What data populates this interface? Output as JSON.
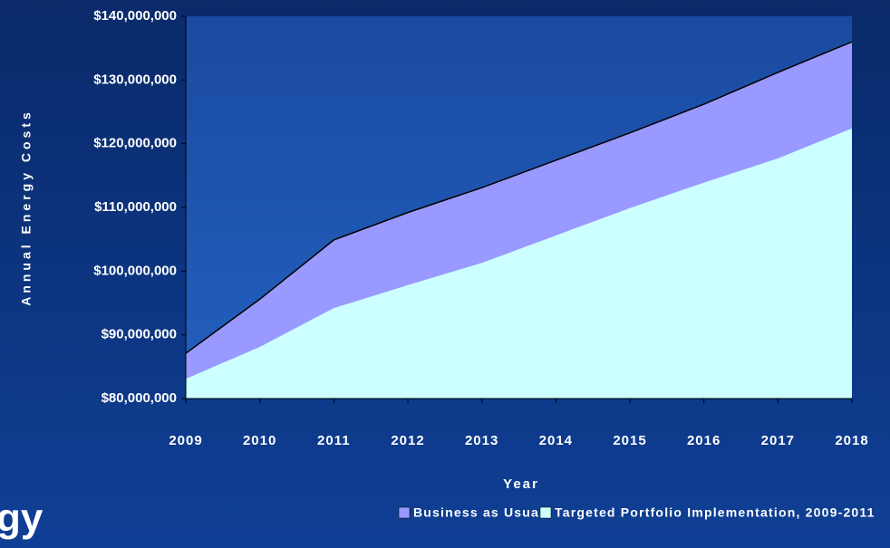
{
  "slide_text": "gy",
  "chart_data": {
    "type": "area",
    "y_label": "Annual Energy Costs",
    "x_label": "Year",
    "categories": [
      "2009",
      "2010",
      "2011",
      "2012",
      "2013",
      "2014",
      "2015",
      "2016",
      "2017",
      "2018"
    ],
    "series": [
      {
        "name": "Business as Usual",
        "color": "#9999ff",
        "values": [
          87100000,
          95600000,
          104900000,
          109200000,
          113100000,
          117400000,
          121700000,
          126200000,
          131200000,
          136000000
        ]
      },
      {
        "name": "Targeted Portfolio Implementation, 2009-2011",
        "color": "#ccffff",
        "values": [
          83100000,
          88100000,
          94200000,
          97800000,
          101300000,
          105600000,
          109900000,
          113900000,
          117700000,
          122400000
        ]
      }
    ],
    "ylim": [
      80000000,
      140000000
    ],
    "yticks": [
      {
        "value": 80000000,
        "label": "$80,000,000"
      },
      {
        "value": 90000000,
        "label": "$90,000,000"
      },
      {
        "value": 100000000,
        "label": "$100,000,000"
      },
      {
        "value": 110000000,
        "label": "$110,000,000"
      },
      {
        "value": 120000000,
        "label": "$120,000,000"
      },
      {
        "value": 130000000,
        "label": "$130,000,000"
      },
      {
        "value": 140000000,
        "label": "$140,000,000"
      }
    ],
    "legend": "bottom"
  }
}
